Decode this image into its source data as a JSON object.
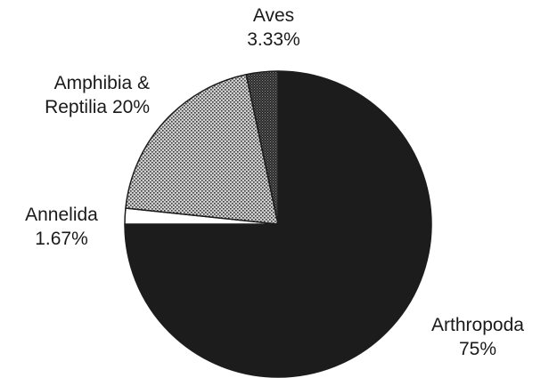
{
  "chart_data": {
    "type": "pie",
    "title": "",
    "slices": [
      {
        "label": "Arthropoda",
        "value": 75,
        "value_label": "75%",
        "color": "#1c1c1c",
        "fill": "solid"
      },
      {
        "label": "Annelida",
        "value": 1.67,
        "value_label": "1.67%",
        "color": "#ffffff",
        "fill": "solid"
      },
      {
        "label": "Amphibia &",
        "label_line2": "Reptilia",
        "value": 20,
        "value_label": "20%",
        "color": "#a8a8a8",
        "fill": "dotted"
      },
      {
        "label": "Aves",
        "value": 3.33,
        "value_label": "3.33%",
        "color": "#4a4a4a",
        "fill": "dotted"
      }
    ],
    "start_angle_deg": 0,
    "direction": "clockwise",
    "outline_color": "#1c1c1c"
  }
}
